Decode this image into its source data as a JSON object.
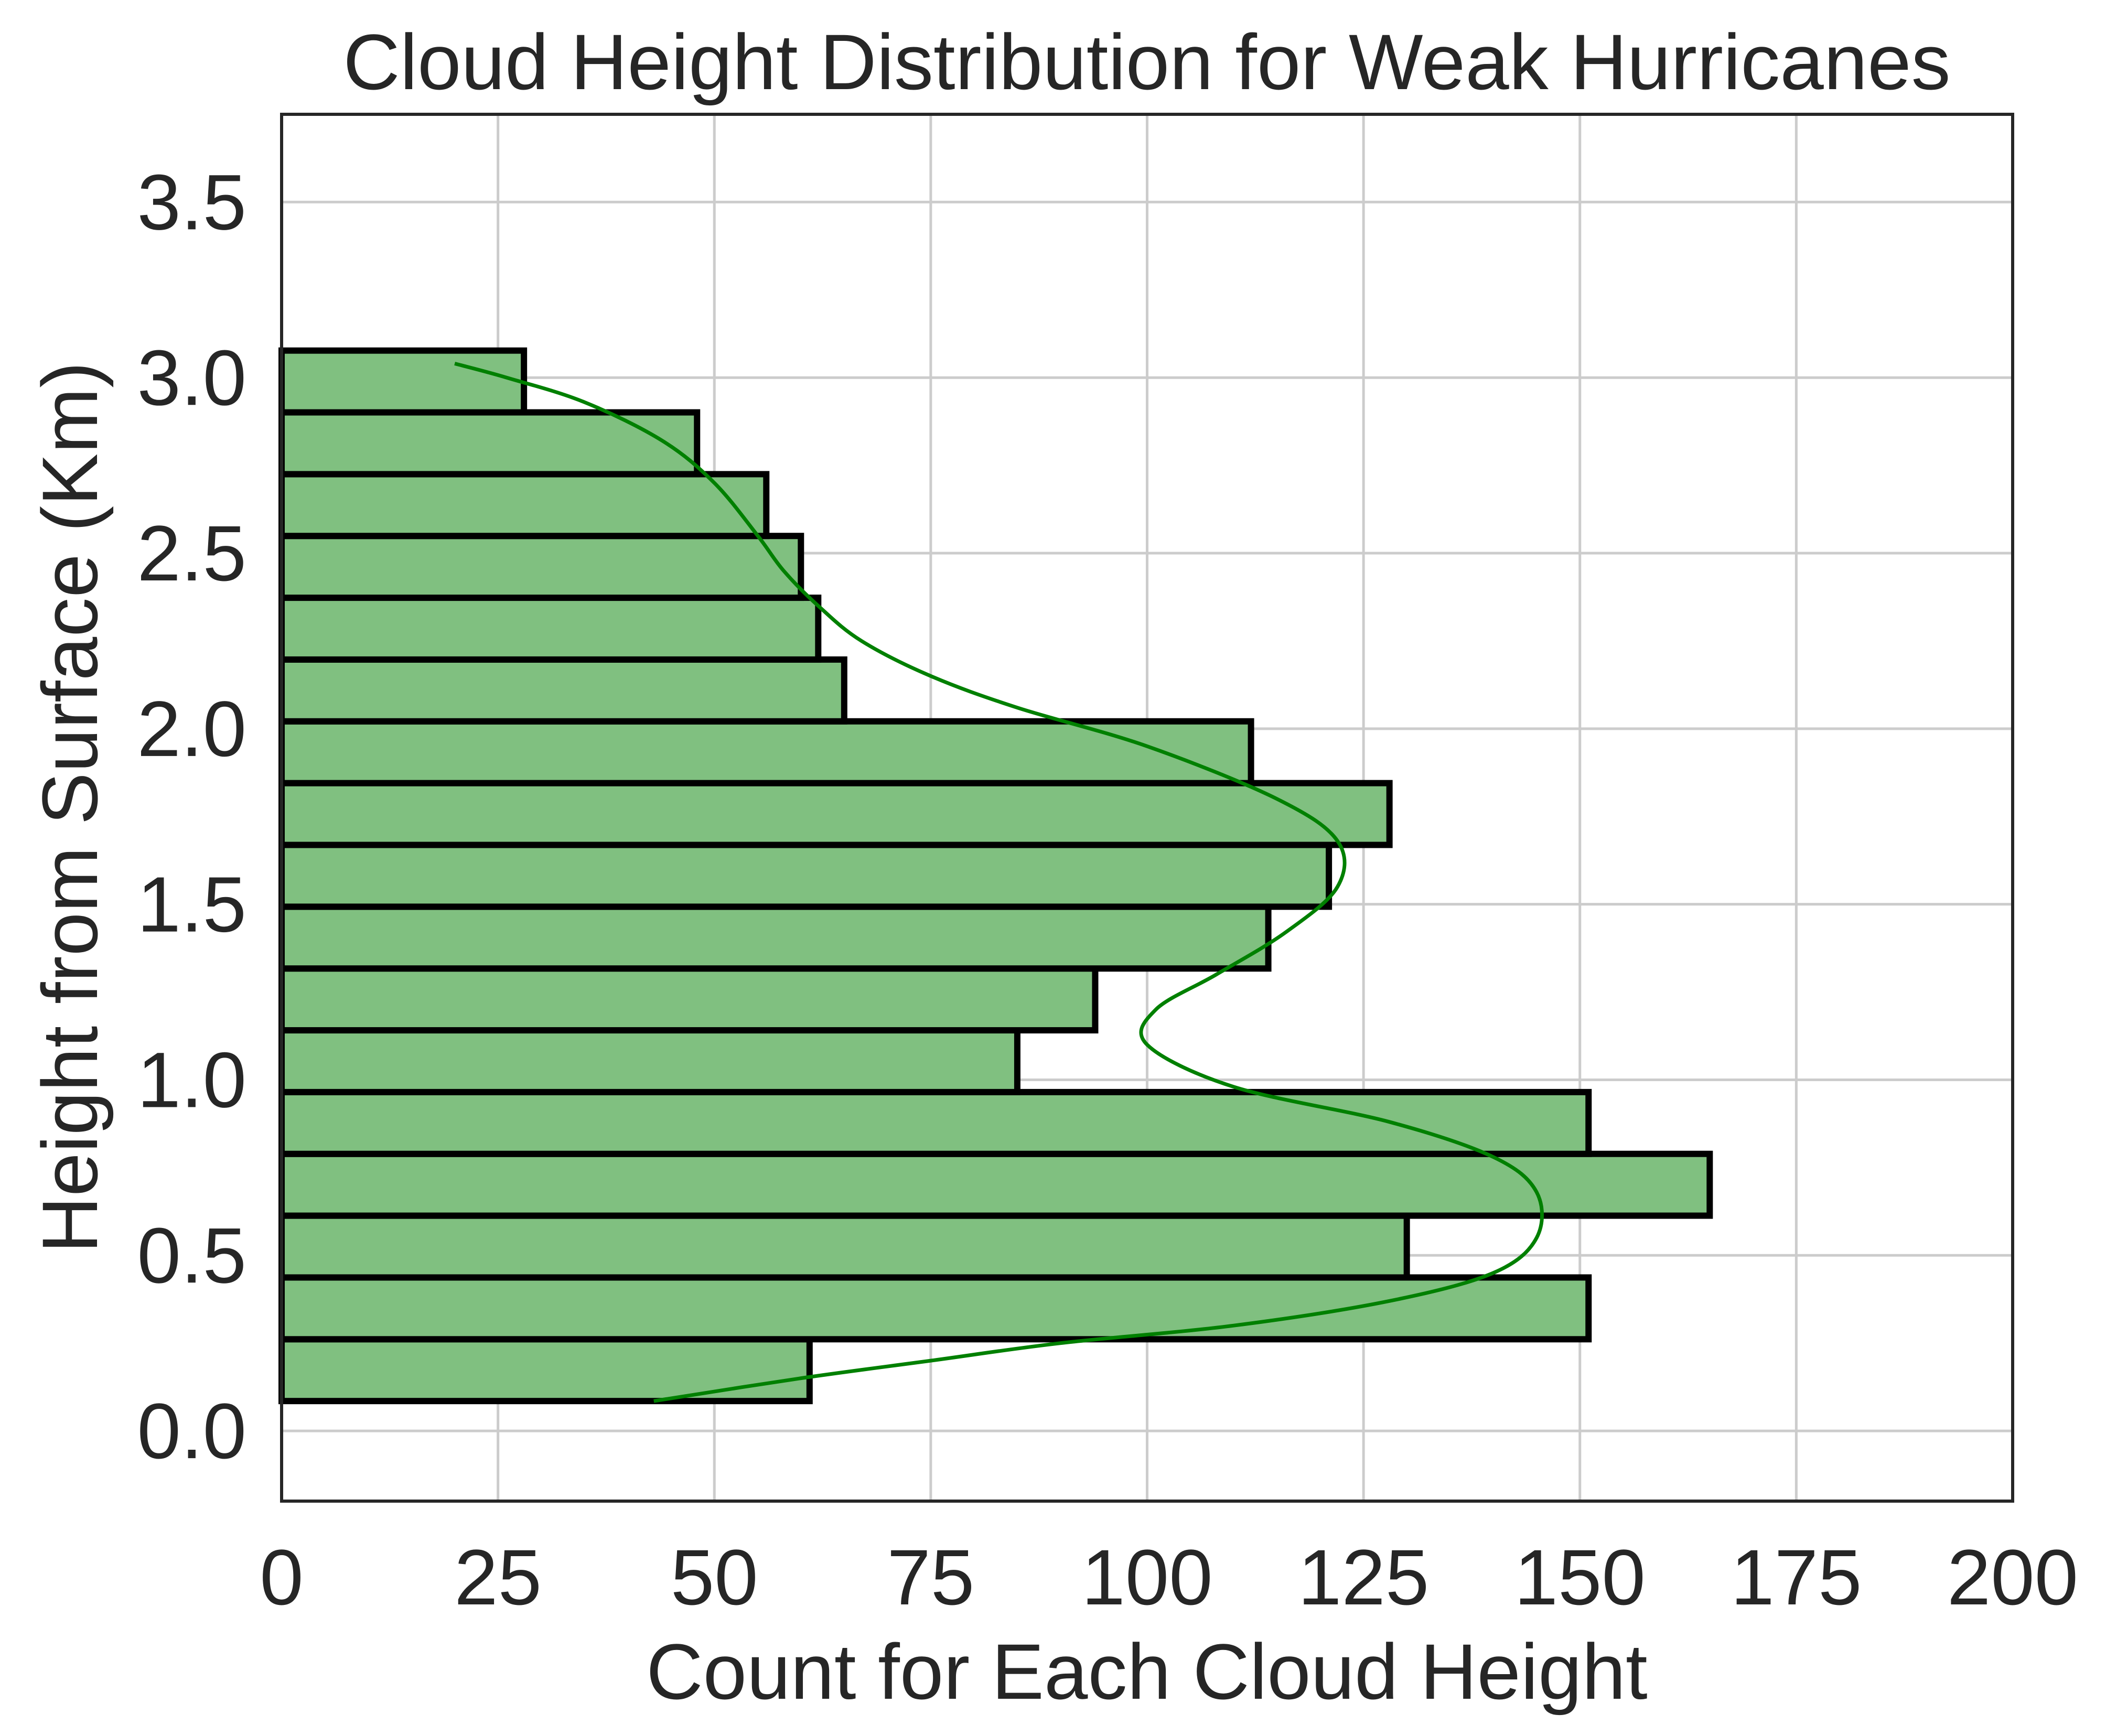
{
  "chart_data": {
    "type": "bar",
    "orientation": "horizontal",
    "title": "Cloud Height Distribution for Weak Hurricanes",
    "xlabel": "Count for Each Cloud Height",
    "ylabel": "Height from Surface (Km)",
    "xlim": [
      0,
      200
    ],
    "ylim": [
      -0.2,
      3.75
    ],
    "xticks": [
      0,
      25,
      50,
      75,
      100,
      125,
      150,
      175,
      200
    ],
    "xtick_labels": [
      "0",
      "25",
      "50",
      "75",
      "100",
      "125",
      "150",
      "175",
      "200"
    ],
    "yticks": [
      0,
      0.5,
      1,
      1.5,
      2,
      2.5,
      3,
      3.5
    ],
    "ytick_labels": [
      "0.0",
      "0.5",
      "1.0",
      "1.5",
      "2.0",
      "2.5",
      "3.0",
      "3.5"
    ],
    "grid": true,
    "bins": [
      {
        "low": 0.085,
        "high": 0.261,
        "count": 61
      },
      {
        "low": 0.261,
        "high": 0.437,
        "count": 151
      },
      {
        "low": 0.437,
        "high": 0.613,
        "count": 130
      },
      {
        "low": 0.613,
        "high": 0.789,
        "count": 165
      },
      {
        "low": 0.789,
        "high": 0.965,
        "count": 151
      },
      {
        "low": 0.965,
        "high": 1.141,
        "count": 85
      },
      {
        "low": 1.141,
        "high": 1.317,
        "count": 94
      },
      {
        "low": 1.317,
        "high": 1.493,
        "count": 114
      },
      {
        "low": 1.493,
        "high": 1.669,
        "count": 121
      },
      {
        "low": 1.669,
        "high": 1.845,
        "count": 128
      },
      {
        "low": 1.845,
        "high": 2.021,
        "count": 112
      },
      {
        "low": 2.021,
        "high": 2.197,
        "count": 65
      },
      {
        "low": 2.197,
        "high": 2.373,
        "count": 62
      },
      {
        "low": 2.373,
        "high": 2.549,
        "count": 60
      },
      {
        "low": 2.549,
        "high": 2.725,
        "count": 56
      },
      {
        "low": 2.725,
        "high": 2.901,
        "count": 48
      },
      {
        "low": 2.901,
        "high": 3.077,
        "count": 28
      }
    ],
    "kde_curve": {
      "x": [
        43,
        60,
        75,
        90,
        110,
        128,
        140,
        145,
        145,
        140,
        128,
        110,
        100,
        101,
        108,
        116,
        122,
        122,
        115,
        100,
        85,
        75,
        67,
        62,
        58,
        55,
        50,
        44,
        35,
        26,
        20
      ],
      "y": [
        0.085,
        0.15,
        0.2,
        0.25,
        0.3,
        0.37,
        0.45,
        0.55,
        0.68,
        0.78,
        0.88,
        0.98,
        1.1,
        1.2,
        1.3,
        1.42,
        1.55,
        1.68,
        1.8,
        1.95,
        2.06,
        2.15,
        2.25,
        2.35,
        2.45,
        2.55,
        2.7,
        2.82,
        2.93,
        3.0,
        3.04
      ]
    },
    "colors": {
      "bar_fill": "#80c080",
      "bar_edge": "#000000",
      "kde_line": "#008000",
      "grid": "#cccccc",
      "axes": "#262626"
    }
  }
}
